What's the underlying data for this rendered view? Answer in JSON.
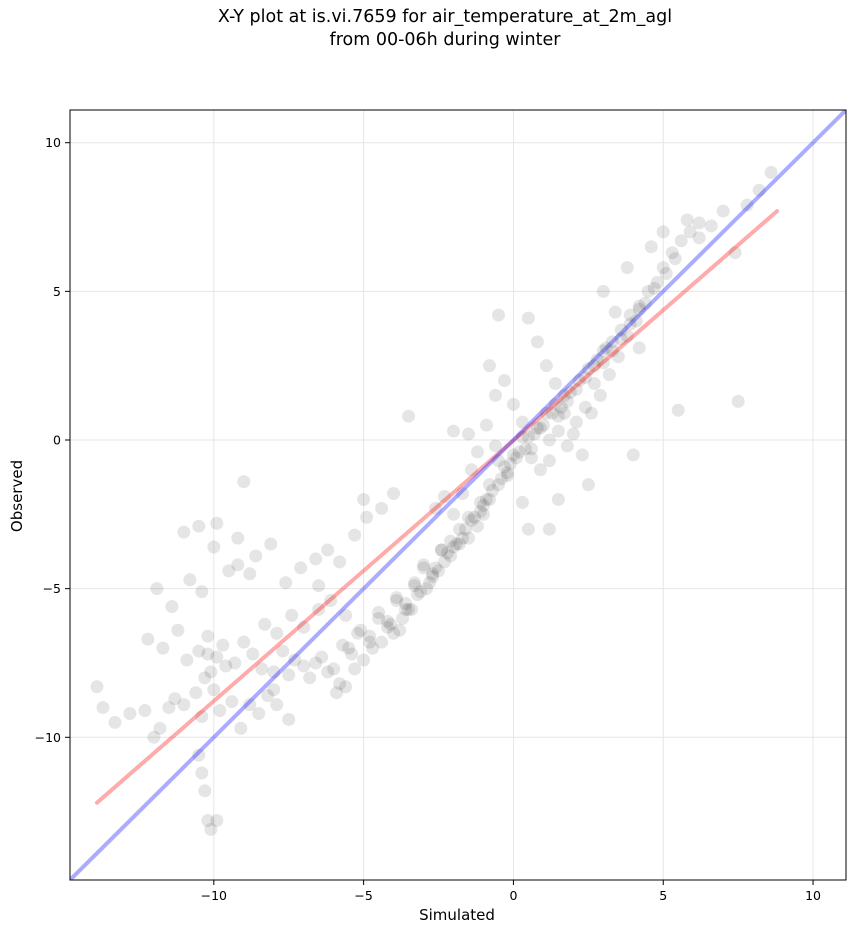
{
  "chart_data": {
    "type": "scatter",
    "title": "X-Y plot at is.vi.7659 for air_temperature_at_2m_agl\nfrom 00-06h during winter",
    "xlabel": "Simulated",
    "ylabel": "Observed",
    "xlim": [
      -14.8,
      11.1
    ],
    "ylim": [
      -14.8,
      11.1
    ],
    "xticks": [
      -10,
      -5,
      0,
      5,
      10
    ],
    "yticks": [
      -10,
      -5,
      0,
      5,
      10
    ],
    "xtick_labels": [
      "−10",
      "−5",
      "0",
      "5",
      "10"
    ],
    "ytick_labels": [
      "−10",
      "−5",
      "0",
      "5",
      "10"
    ],
    "grid": true,
    "colors": {
      "points": "#000000",
      "regression_line": "#ff0000",
      "identity_line": "#0000ff",
      "grid": "#e6e6e6"
    },
    "series": [
      {
        "kind": "points",
        "x": [
          -13.9,
          -13.7,
          -13.3,
          -12.8,
          -12.3,
          -12.0,
          -11.8,
          -11.5,
          -11.3,
          -11.0,
          -10.6,
          -10.4,
          -10.3,
          -10.2,
          -10.1,
          -10.0,
          -9.8,
          -9.6,
          -9.4,
          -9.1,
          -8.8,
          -8.5,
          -8.2,
          -7.9,
          -7.5,
          -12.2,
          -11.7,
          -11.2,
          -10.9,
          -10.5,
          -10.2,
          -9.9,
          -9.7,
          -9.3,
          -9.0,
          -8.7,
          -8.4,
          -8.0,
          -7.7,
          -7.3,
          -11.9,
          -11.4,
          -10.8,
          -10.4,
          -10.0,
          -9.5,
          -9.2,
          -8.8,
          -8.3,
          -7.9,
          -7.4,
          -7.0,
          -6.5,
          -6.1,
          -5.6,
          -11.0,
          -10.5,
          -9.9,
          -9.2,
          -8.6,
          -8.1,
          -7.6,
          -7.1,
          -6.6,
          -6.2,
          -5.8,
          -5.3,
          -4.9,
          -4.4,
          -4.0,
          -8.0,
          -7.5,
          -7.0,
          -6.6,
          -6.2,
          -5.8,
          -5.5,
          -5.2,
          -4.8,
          -4.5,
          -4.2,
          -3.9,
          -3.6,
          -3.3,
          -3.0,
          -2.7,
          -2.4,
          -2.1,
          -1.8,
          -1.5,
          -6.8,
          -6.4,
          -6.0,
          -5.7,
          -5.4,
          -5.1,
          -4.8,
          -4.5,
          -4.2,
          -3.9,
          -3.6,
          -3.3,
          -3.0,
          -2.7,
          -2.4,
          -2.1,
          -1.8,
          -1.5,
          -1.2,
          -0.9,
          -5.9,
          -5.6,
          -5.3,
          -5.0,
          -4.7,
          -4.4,
          -4.1,
          -3.8,
          -3.5,
          -3.2,
          -2.9,
          -2.6,
          -2.3,
          -2.0,
          -1.7,
          -1.4,
          -1.1,
          -0.8,
          -0.5,
          -0.2,
          -4.0,
          -3.7,
          -3.4,
          -3.1,
          -2.8,
          -2.5,
          -2.2,
          -1.9,
          -1.6,
          -1.3,
          -1.0,
          -0.7,
          -0.4,
          -0.1,
          0.2,
          0.5,
          0.8,
          1.1,
          1.4,
          1.7,
          -2.6,
          -2.3,
          -2.0,
          -1.7,
          -1.4,
          -1.1,
          -0.8,
          -0.5,
          -0.2,
          0.1,
          0.4,
          0.7,
          1.0,
          1.3,
          1.6,
          1.9,
          2.2,
          2.5,
          2.8,
          3.1,
          -1.5,
          -1.2,
          -0.9,
          -0.6,
          -0.3,
          0.0,
          0.3,
          0.6,
          0.9,
          1.2,
          1.5,
          1.8,
          2.1,
          2.4,
          2.7,
          3.0,
          3.3,
          3.6,
          3.9,
          4.2,
          -0.6,
          -0.3,
          0.0,
          0.3,
          0.6,
          0.9,
          1.2,
          1.5,
          1.8,
          2.1,
          2.4,
          2.7,
          3.0,
          3.3,
          3.6,
          3.9,
          4.2,
          4.5,
          4.8,
          5.1,
          0.5,
          0.8,
          1.1,
          1.4,
          1.7,
          2.0,
          2.3,
          2.6,
          2.9,
          3.2,
          3.5,
          3.8,
          4.1,
          4.4,
          4.7,
          5.0,
          5.3,
          5.6,
          5.9,
          6.2,
          3.0,
          3.4,
          3.8,
          4.2,
          4.6,
          5.0,
          5.4,
          5.8,
          6.2,
          6.6,
          7.0,
          7.4,
          7.8,
          8.2,
          8.6,
          -9.0,
          -6.5,
          -5.0,
          -3.5,
          -2.0,
          -0.8,
          0.3,
          1.2,
          2.5,
          4.0,
          5.5,
          7.5,
          -10.4,
          -10.3,
          -10.2,
          -10.1,
          -10.5,
          -9.9,
          -1.0,
          0.5,
          1.5,
          -0.5
        ],
        "y": [
          -8.3,
          -9.0,
          -9.5,
          -9.2,
          -9.1,
          -10.0,
          -9.7,
          -9.0,
          -8.7,
          -8.9,
          -8.5,
          -9.3,
          -8.0,
          -7.2,
          -7.8,
          -8.4,
          -9.1,
          -7.6,
          -8.8,
          -9.7,
          -8.9,
          -9.2,
          -8.6,
          -8.9,
          -9.4,
          -6.7,
          -7.0,
          -6.4,
          -7.4,
          -7.1,
          -6.6,
          -7.3,
          -6.9,
          -7.5,
          -6.8,
          -7.2,
          -7.7,
          -7.8,
          -7.1,
          -7.4,
          -5.0,
          -5.6,
          -4.7,
          -5.1,
          -3.6,
          -4.4,
          -4.2,
          -4.5,
          -6.2,
          -6.5,
          -5.9,
          -6.3,
          -5.7,
          -5.4,
          -5.9,
          -3.1,
          -2.9,
          -2.8,
          -3.3,
          -3.9,
          -3.5,
          -4.8,
          -4.3,
          -4.0,
          -3.7,
          -4.1,
          -3.2,
          -2.6,
          -2.3,
          -1.8,
          -8.4,
          -7.9,
          -7.6,
          -7.5,
          -7.8,
          -8.2,
          -7.0,
          -6.5,
          -6.8,
          -6.0,
          -6.3,
          -5.4,
          -5.7,
          -4.9,
          -4.2,
          -4.5,
          -3.7,
          -3.9,
          -3.0,
          -3.3,
          -8.0,
          -7.3,
          -7.7,
          -6.9,
          -7.2,
          -6.4,
          -6.6,
          -5.8,
          -6.1,
          -5.3,
          -5.5,
          -4.8,
          -4.3,
          -4.6,
          -3.7,
          -3.4,
          -3.5,
          -2.6,
          -2.9,
          -2.0,
          -8.5,
          -8.3,
          -7.7,
          -7.4,
          -7.0,
          -6.8,
          -6.2,
          -6.4,
          -5.7,
          -5.2,
          -5.0,
          -4.3,
          -4.1,
          -3.6,
          -3.3,
          -2.7,
          -2.4,
          -2.0,
          -1.5,
          -1.1,
          -6.5,
          -6.0,
          -5.7,
          -5.1,
          -4.8,
          -4.4,
          -3.8,
          -3.5,
          -3.0,
          -2.6,
          -2.2,
          -1.7,
          -1.3,
          -0.8,
          -0.4,
          0.1,
          0.4,
          0.9,
          1.2,
          1.5,
          -2.3,
          -1.9,
          -2.5,
          -1.8,
          -1.0,
          -2.1,
          -1.5,
          -0.7,
          -1.2,
          -0.6,
          -0.3,
          0.2,
          0.5,
          0.9,
          1.1,
          1.6,
          2.0,
          2.4,
          2.7,
          3.1,
          0.2,
          -0.4,
          0.5,
          -0.2,
          -0.9,
          -0.5,
          0.1,
          -0.3,
          0.4,
          0.0,
          0.8,
          1.3,
          1.7,
          2.1,
          2.5,
          3.0,
          3.3,
          3.7,
          4.2,
          4.5,
          1.5,
          2.0,
          1.2,
          0.6,
          -0.6,
          -1.0,
          -0.7,
          0.3,
          -0.2,
          0.6,
          1.1,
          1.9,
          2.6,
          3.0,
          3.4,
          3.9,
          4.4,
          5.0,
          5.3,
          5.6,
          4.1,
          3.3,
          2.5,
          1.9,
          0.9,
          0.2,
          -0.5,
          0.9,
          1.5,
          2.2,
          2.8,
          3.5,
          4.0,
          4.6,
          5.1,
          5.8,
          6.3,
          6.7,
          7.0,
          7.3,
          5.0,
          4.3,
          5.8,
          3.1,
          6.5,
          7.0,
          6.1,
          7.4,
          6.8,
          7.2,
          7.7,
          6.3,
          7.9,
          8.4,
          9.0,
          -1.4,
          -4.9,
          -2.0,
          0.8,
          0.3,
          2.5,
          -2.1,
          -3.0,
          -1.5,
          -0.5,
          1.0,
          1.3,
          -11.2,
          -11.8,
          -12.8,
          -13.1,
          -10.6,
          -12.8,
          -2.5,
          -3.0,
          -2.0,
          4.2
        ]
      },
      {
        "kind": "regression-line",
        "x": [
          -13.9,
          8.8
        ],
        "y": [
          -12.2,
          7.7
        ]
      },
      {
        "kind": "identity-line",
        "x": [
          -14.8,
          11.1
        ],
        "y": [
          -14.8,
          11.1
        ]
      }
    ]
  }
}
